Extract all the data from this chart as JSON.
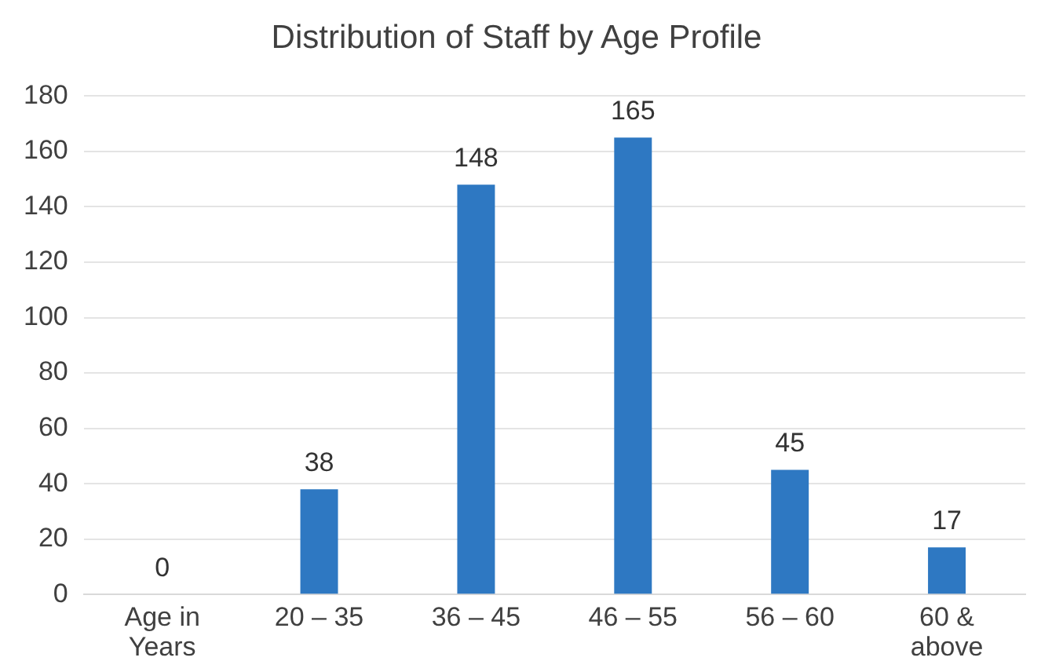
{
  "chart_data": {
    "type": "bar",
    "title": "Distribution of Staff by Age Profile",
    "categories": [
      "Age in Years",
      "20 – 35",
      "36 – 45",
      "46 – 55",
      "56 – 60",
      "60 & above"
    ],
    "values": [
      0,
      38,
      148,
      165,
      45,
      17
    ],
    "color": "#2e78c2",
    "ylim": [
      0,
      180
    ],
    "yticks": [
      0,
      20,
      40,
      60,
      80,
      100,
      120,
      140,
      160,
      180
    ],
    "grid": "y",
    "data_labels": true
  }
}
